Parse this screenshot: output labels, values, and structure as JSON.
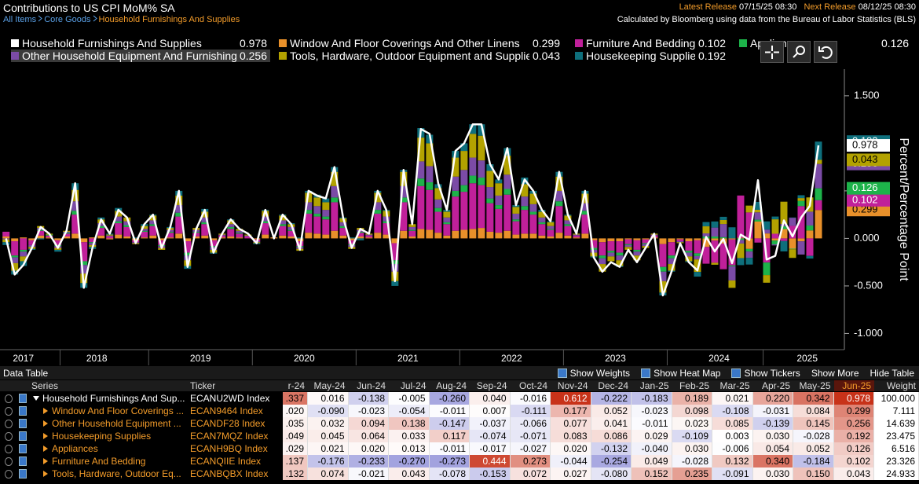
{
  "header": {
    "title": "Contributions to US CPI MoM% SA",
    "breadcrumbs": [
      "All Items",
      "Core Goods",
      "Household Furnishings And Supplies"
    ],
    "latest_label": "Latest Release",
    "latest": "07/15/25 08:30",
    "next_label": "Next Release",
    "next": "08/12/25 08:30",
    "note": "Calculated by Bloomberg using data from the Bureau of Labor Statistics (BLS)"
  },
  "chart_data": {
    "type": "bar",
    "y_axis_label": "Percent/Percentage Point",
    "xlim": [
      -0.7,
      97
    ],
    "ylim": [
      -1.17,
      1.78
    ],
    "xticks": [
      {
        "value": 2,
        "label": "2017"
      },
      {
        "value": 10.5,
        "label": "2018"
      },
      {
        "value": 22.5,
        "label": "2019"
      },
      {
        "value": 34.5,
        "label": "2020"
      },
      {
        "value": 46.5,
        "label": "2021"
      },
      {
        "value": 58.5,
        "label": "2022"
      },
      {
        "value": 70.5,
        "label": "2023"
      },
      {
        "value": 82.5,
        "label": "2024"
      },
      {
        "value": 92.7,
        "label": "2025"
      }
    ],
    "yticks": [
      {
        "value": 1.5,
        "label": "1.500"
      },
      {
        "value": 0.5,
        "label": "0.500"
      },
      {
        "value": 0,
        "label": "0.000"
      },
      {
        "value": -0.5,
        "label": "-0.500"
      },
      {
        "value": -1,
        "label": "-1.000"
      }
    ],
    "series": [
      {
        "name": "Household Furnishings And Supplies",
        "type": "line",
        "color": "#ffffff",
        "values": [
          0.0,
          -0.38,
          -0.28,
          -0.1,
          0.12,
          0.05,
          -0.1,
          0.08,
          0.58,
          -0.52,
          -0.1,
          0.2,
          0.05,
          0.3,
          0.22,
          -0.05,
          0.15,
          0.25,
          -0.1,
          0.12,
          0.5,
          -0.3,
          0.1,
          0.3,
          -0.15,
          0.05,
          0.2,
          0.1,
          0.05,
          -0.05,
          0.3,
          0.0,
          0.25,
          0.15,
          -0.12,
          0.5,
          0.45,
          0.42,
          0.75,
          0.22,
          -0.1,
          0.1,
          0.05,
          0.5,
          0.3,
          -0.45,
          0.72,
          0.15,
          1.15,
          1.1,
          0.58,
          0.3,
          0.92,
          1.0,
          1.2,
          1.2,
          0.78,
          0.62,
          0.95,
          0.35,
          0.62,
          0.5,
          0.3,
          0.18,
          0.7,
          0.25,
          0.05,
          0.5,
          -0.2,
          -0.35,
          -0.25,
          -0.3,
          -0.12,
          -0.25,
          -0.1,
          0.05,
          -0.6,
          -0.35,
          -0.05,
          -0.25,
          -0.337,
          0.016,
          -0.138,
          -0.005,
          -0.26,
          0.04,
          -0.016,
          0.612,
          -0.222,
          -0.183,
          0.189,
          0.021,
          0.22,
          0.342,
          0.978
        ]
      },
      {
        "name": "Window And Floor Coverings And Other Linens",
        "type": "bar",
        "color": "#e8902a",
        "values": [
          0.02,
          -0.03,
          0.01,
          -0.02,
          0.03,
          0.01,
          -0.02,
          0.02,
          0.05,
          -0.04,
          0.01,
          0.03,
          -0.01,
          0.04,
          0.02,
          -0.02,
          0.01,
          0.03,
          -0.02,
          0.01,
          0.05,
          -0.03,
          0.02,
          0.03,
          -0.02,
          0.01,
          0.02,
          0.01,
          0.0,
          -0.01,
          0.04,
          0.01,
          0.03,
          0.02,
          -0.03,
          0.06,
          0.05,
          0.04,
          0.08,
          0.03,
          -0.02,
          0.02,
          0.01,
          0.06,
          0.04,
          -0.05,
          0.08,
          0.02,
          0.1,
          0.09,
          0.06,
          0.03,
          0.08,
          0.09,
          0.1,
          0.11,
          0.07,
          0.06,
          0.08,
          0.04,
          0.05,
          0.05,
          0.03,
          0.02,
          0.06,
          0.03,
          0.01,
          0.05,
          -0.02,
          -0.04,
          -0.03,
          -0.03,
          -0.01,
          -0.02,
          -0.01,
          0.01,
          -0.06,
          -0.04,
          -0.01,
          -0.03,
          -0.02,
          -0.09,
          -0.023,
          -0.054,
          -0.011,
          0.007,
          -0.111,
          0.177,
          0.052,
          -0.023,
          0.098,
          -0.108,
          -0.031,
          0.084,
          0.299
        ]
      },
      {
        "name": "Furniture And Bedding",
        "type": "bar",
        "color": "#c0209a",
        "values": [
          0.05,
          -0.15,
          -0.12,
          -0.05,
          0.05,
          0.02,
          -0.05,
          0.03,
          0.2,
          -0.2,
          -0.04,
          0.08,
          0.02,
          0.12,
          0.1,
          -0.02,
          0.06,
          0.1,
          -0.05,
          0.05,
          0.18,
          -0.12,
          0.04,
          0.12,
          -0.06,
          0.02,
          0.08,
          0.04,
          0.02,
          -0.02,
          0.12,
          0.0,
          0.1,
          0.06,
          -0.05,
          0.2,
          0.18,
          0.16,
          0.3,
          0.08,
          -0.04,
          0.04,
          0.02,
          0.2,
          0.12,
          -0.18,
          0.3,
          0.06,
          0.45,
          0.42,
          0.22,
          0.12,
          0.36,
          0.4,
          0.48,
          0.45,
          0.3,
          0.25,
          0.38,
          0.14,
          0.25,
          0.2,
          0.12,
          0.07,
          0.28,
          0.1,
          0.02,
          0.2,
          -0.08,
          -0.14,
          -0.1,
          -0.12,
          -0.05,
          -0.1,
          -0.04,
          0.02,
          -0.24,
          -0.14,
          -0.02,
          -0.1,
          -0.137,
          -0.176,
          -0.233,
          -0.27,
          -0.273,
          0.444,
          0.273,
          -0.044,
          -0.254,
          0.049,
          -0.028,
          0.132,
          0.34,
          -0.184,
          0.102
        ]
      },
      {
        "name": "Appliances",
        "type": "bar",
        "color": "#1db34a",
        "values": [
          0.0,
          -0.02,
          -0.02,
          0.0,
          0.01,
          0.01,
          -0.01,
          0.01,
          0.04,
          -0.04,
          -0.01,
          0.02,
          0.0,
          0.02,
          0.02,
          0.0,
          0.01,
          0.02,
          -0.01,
          0.01,
          0.04,
          -0.03,
          0.01,
          0.02,
          -0.01,
          0.0,
          0.02,
          0.01,
          0.0,
          0.0,
          0.02,
          0.0,
          0.02,
          0.01,
          -0.01,
          0.04,
          0.03,
          0.03,
          0.05,
          0.02,
          -0.01,
          0.01,
          0.0,
          0.04,
          0.02,
          -0.04,
          0.05,
          0.01,
          0.08,
          0.08,
          0.04,
          0.02,
          0.06,
          0.07,
          0.08,
          0.08,
          0.05,
          0.04,
          0.06,
          0.02,
          0.04,
          0.03,
          0.02,
          0.01,
          0.05,
          0.02,
          0.0,
          0.04,
          -0.02,
          -0.03,
          -0.02,
          -0.03,
          -0.01,
          -0.02,
          -0.01,
          0.0,
          -0.05,
          -0.03,
          0.0,
          -0.02,
          -0.029,
          0.021,
          0.02,
          0.013,
          -0.011,
          -0.017,
          -0.027,
          0.02,
          -0.132,
          -0.04,
          0.03,
          -0.006,
          0.054,
          0.052,
          0.126
        ]
      },
      {
        "name": "Other Household Equipment And Furnishings",
        "type": "bar",
        "color": "#7b4ba6",
        "values": [
          -0.01,
          -0.06,
          -0.05,
          -0.02,
          0.02,
          0.0,
          -0.02,
          0.01,
          0.1,
          -0.09,
          -0.02,
          0.03,
          0.01,
          0.05,
          0.04,
          -0.01,
          0.02,
          0.04,
          -0.02,
          0.02,
          0.08,
          -0.05,
          0.02,
          0.05,
          -0.03,
          0.01,
          0.03,
          0.02,
          0.01,
          -0.01,
          0.05,
          0.0,
          0.04,
          0.03,
          -0.02,
          0.08,
          0.08,
          0.07,
          0.12,
          0.04,
          -0.02,
          0.02,
          0.01,
          0.08,
          0.05,
          -0.08,
          0.12,
          0.03,
          0.18,
          0.17,
          0.09,
          0.05,
          0.15,
          0.16,
          0.19,
          0.18,
          0.12,
          0.1,
          0.15,
          0.06,
          0.1,
          0.08,
          0.05,
          0.03,
          0.11,
          0.04,
          0.01,
          0.08,
          -0.03,
          -0.06,
          -0.04,
          -0.05,
          -0.02,
          -0.04,
          -0.02,
          0.01,
          -0.1,
          -0.06,
          -0.01,
          -0.04,
          -0.035,
          0.032,
          0.094,
          0.138,
          -0.147,
          -0.037,
          -0.066,
          0.077,
          0.041,
          -0.011,
          0.023,
          0.085,
          -0.139,
          0.145,
          0.256
        ]
      },
      {
        "name": "Tools, Hardware, Outdoor Equipment and Supplies",
        "type": "bar",
        "color": "#b3a200",
        "values": [
          -0.03,
          -0.08,
          -0.05,
          -0.02,
          0.02,
          0.01,
          -0.02,
          0.01,
          0.12,
          -0.1,
          -0.02,
          0.04,
          0.01,
          0.06,
          0.04,
          -0.01,
          0.03,
          0.05,
          -0.02,
          0.02,
          0.1,
          -0.06,
          0.02,
          0.06,
          -0.03,
          0.01,
          0.04,
          0.02,
          0.01,
          -0.01,
          0.06,
          0.0,
          0.05,
          0.03,
          -0.02,
          0.1,
          0.09,
          0.08,
          0.15,
          0.04,
          -0.02,
          0.02,
          0.01,
          0.1,
          0.06,
          -0.1,
          0.15,
          0.03,
          0.25,
          0.24,
          0.12,
          0.06,
          0.2,
          0.2,
          0.25,
          0.26,
          0.17,
          0.13,
          0.2,
          0.07,
          0.13,
          0.11,
          0.06,
          0.04,
          0.15,
          0.05,
          0.01,
          0.1,
          -0.04,
          -0.08,
          -0.05,
          -0.06,
          -0.03,
          -0.05,
          -0.02,
          0.01,
          -0.12,
          -0.07,
          -0.01,
          -0.05,
          -0.132,
          0.074,
          -0.021,
          0.043,
          -0.078,
          -0.153,
          0.072,
          0.027,
          -0.08,
          0.152,
          0.235,
          -0.091,
          0.03,
          0.15,
          0.043
        ]
      },
      {
        "name": "Housekeeping Supplies",
        "type": "bar",
        "color": "#0e6f7c",
        "values": [
          -0.03,
          -0.04,
          -0.05,
          -0.01,
          -0.01,
          0.0,
          -0.02,
          0.0,
          0.07,
          -0.05,
          -0.02,
          0.02,
          0.01,
          0.03,
          0.0,
          0.01,
          0.02,
          0.01,
          0.0,
          0.01,
          0.05,
          -0.03,
          0.0,
          0.03,
          -0.01,
          0.0,
          0.01,
          0.0,
          0.0,
          -0.01,
          0.01,
          0.0,
          0.01,
          0.01,
          0.01,
          0.02,
          0.03,
          0.04,
          0.05,
          0.01,
          0.01,
          -0.02,
          0.0,
          0.02,
          0.01,
          -0.05,
          0.02,
          0.0,
          0.1,
          0.09,
          0.04,
          0.02,
          0.07,
          0.08,
          0.1,
          0.12,
          0.07,
          0.04,
          0.08,
          0.02,
          0.07,
          0.03,
          0.02,
          0.01,
          0.05,
          0.01,
          0.0,
          0.03,
          -0.01,
          0.0,
          0.0,
          -0.01,
          0.0,
          0.0,
          0.0,
          0.0,
          -0.03,
          -0.01,
          0.0,
          -0.01,
          -0.049,
          0.045,
          0.064,
          0.033,
          0.117,
          -0.074,
          -0.071,
          0.083,
          0.086,
          0.029,
          -0.109,
          0.003,
          0.03,
          -0.028,
          0.192
        ]
      }
    ]
  },
  "table": {
    "title": "Data Table",
    "controls": [
      "Show Weights",
      "Show Heat Map",
      "Show Tickers",
      "Show More",
      "Hide Table"
    ],
    "columns": [
      "Series",
      "Ticker",
      "r-24",
      "May-24",
      "Jun-24",
      "Jul-24",
      "Aug-24",
      "Sep-24",
      "Oct-24",
      "Nov-24",
      "Dec-24",
      "Jan-25",
      "Feb-25",
      "Mar-25",
      "Apr-25",
      "May-25",
      "Jun-25",
      "Weight"
    ],
    "rows": [
      [
        "Household Furnishings And Sup...",
        "ECANU2WD Index",
        ".337",
        "0.016",
        "-0.138",
        "-0.005",
        "-0.260",
        "0.040",
        "-0.016",
        "0.612",
        "-0.222",
        "-0.183",
        "0.189",
        "0.021",
        "0.220",
        "0.342",
        "0.978",
        "100.000"
      ],
      [
        "Window And Floor Coverings ...",
        "ECAN9464 Index",
        ".020",
        "-0.090",
        "-0.023",
        "-0.054",
        "-0.011",
        "0.007",
        "-0.111",
        "0.177",
        "0.052",
        "-0.023",
        "0.098",
        "-0.108",
        "-0.031",
        "0.084",
        "0.299",
        "7.111"
      ],
      [
        "Other Household Equipment ...",
        "ECANDF28 Index",
        ".035",
        "0.032",
        "0.094",
        "0.138",
        "-0.147",
        "-0.037",
        "-0.066",
        "0.077",
        "0.041",
        "-0.011",
        "0.023",
        "0.085",
        "-0.139",
        "0.145",
        "0.256",
        "14.639"
      ],
      [
        "Housekeeping Supplies",
        "ECAN7MQZ Index",
        ".049",
        "0.045",
        "0.064",
        "0.033",
        "0.117",
        "-0.074",
        "-0.071",
        "0.083",
        "0.086",
        "0.029",
        "-0.109",
        "0.003",
        "0.030",
        "-0.028",
        "0.192",
        "23.475"
      ],
      [
        "Appliances",
        "ECANH9BQ Index",
        ".029",
        "0.021",
        "0.020",
        "0.013",
        "-0.011",
        "-0.017",
        "-0.027",
        "0.020",
        "-0.132",
        "-0.040",
        "0.030",
        "-0.006",
        "0.054",
        "0.052",
        "0.126",
        "6.516"
      ],
      [
        "Furniture And Bedding",
        "ECANQIIE Index",
        ".137",
        "-0.176",
        "-0.233",
        "-0.270",
        "-0.273",
        "0.444",
        "0.273",
        "-0.044",
        "-0.254",
        "0.049",
        "-0.028",
        "0.132",
        "0.340",
        "-0.184",
        "0.102",
        "23.326"
      ],
      [
        "Tools, Hardware, Outdoor Eq...",
        "ECANBQBX Index",
        ".132",
        "0.074",
        "-0.021",
        "0.043",
        "-0.078",
        "-0.153",
        "0.072",
        "0.027",
        "-0.080",
        "0.152",
        "0.235",
        "-0.091",
        "0.030",
        "0.150",
        "0.043",
        "24.933"
      ]
    ]
  }
}
